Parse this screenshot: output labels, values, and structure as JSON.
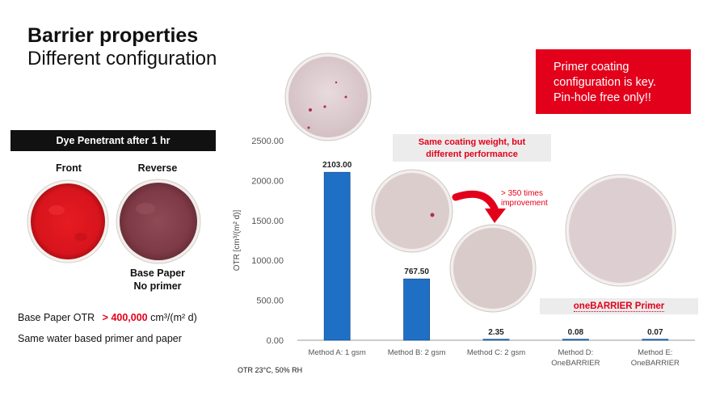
{
  "slide": {
    "title": "Barrier properties",
    "subtitle": "Different configuration",
    "callout": [
      "Primer coating",
      "configuration is key.",
      "Pin-hole free only!!"
    ]
  },
  "dye_panel": {
    "header": "Dye Penetrant after 1 hr",
    "front_label": "Front",
    "reverse_label": "Reverse",
    "caption_line1": "Base Paper",
    "caption_line2": "No primer"
  },
  "left_notes": {
    "otr_prefix": "Base Paper OTR",
    "otr_value": "> 400,000",
    "otr_unit": "cm³/(m² d)",
    "primer_note": "Same water based primer and paper"
  },
  "annotations": {
    "same_weight_line1": "Same coating weight, but",
    "same_weight_line2": "different performance",
    "improvement_line1": "> 350 times",
    "improvement_line2": "improvement",
    "onebarrier_label": "oneBARRIER Primer",
    "conditions": "OTR 23°C, 50% RH"
  },
  "colors": {
    "bar": "#1f6fc5",
    "accent_red": "#e3001b",
    "callout_bg": "#e3001b"
  },
  "chart_data": {
    "type": "bar",
    "categories": [
      [
        "Method A: 1 gsm"
      ],
      [
        "Method B: 2 gsm"
      ],
      [
        "Method C:  2 gsm"
      ],
      [
        "Method D:",
        "OneBARRIER"
      ],
      [
        "Method E:",
        "OneBARRIER"
      ]
    ],
    "values": [
      2103.0,
      767.5,
      2.35,
      0.08,
      0.07
    ],
    "value_labels": [
      "2103.00",
      "767.50",
      "2.35",
      "0.08",
      "0.07"
    ],
    "ylabel": "OTR [cm³/(m² d)]",
    "ylim": [
      0,
      2500
    ],
    "yticks": [
      0,
      500,
      1000,
      1500,
      2000,
      2500
    ],
    "ytick_labels": [
      "0.00",
      "500.00",
      "1000.00",
      "1500.00",
      "2000.00",
      "2500.00"
    ],
    "grid": false
  }
}
